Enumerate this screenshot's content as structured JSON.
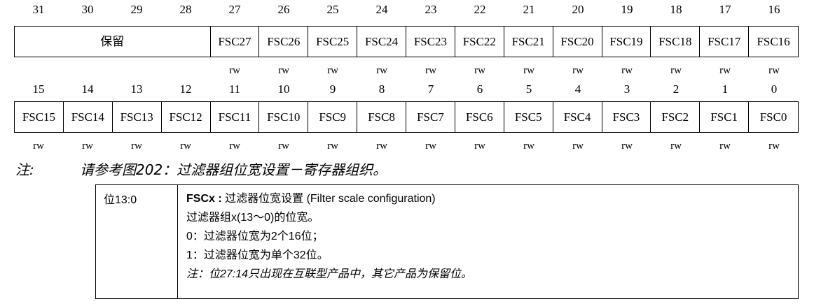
{
  "high_half": {
    "bits": [
      "31",
      "30",
      "29",
      "28",
      "27",
      "26",
      "25",
      "24",
      "23",
      "22",
      "21",
      "20",
      "19",
      "18",
      "17",
      "16"
    ],
    "reserved_label": "保留",
    "fields": [
      "FSC27",
      "FSC26",
      "FSC25",
      "FSC24",
      "FSC23",
      "FSC22",
      "FSC21",
      "FSC20",
      "FSC19",
      "FSC18",
      "FSC17",
      "FSC16"
    ],
    "access": [
      "rw",
      "rw",
      "rw",
      "rw",
      "rw",
      "rw",
      "rw",
      "rw",
      "rw",
      "rw",
      "rw",
      "rw"
    ]
  },
  "low_half": {
    "bits": [
      "15",
      "14",
      "13",
      "12",
      "11",
      "10",
      "9",
      "8",
      "7",
      "6",
      "5",
      "4",
      "3",
      "2",
      "1",
      "0"
    ],
    "fields": [
      "FSC15",
      "FSC14",
      "FSC13",
      "FSC12",
      "FSC11",
      "FSC10",
      "FSC9",
      "FSC8",
      "FSC7",
      "FSC6",
      "FSC5",
      "FSC4",
      "FSC3",
      "FSC2",
      "FSC1",
      "FSC0"
    ],
    "access": [
      "rw",
      "rw",
      "rw",
      "rw",
      "rw",
      "rw",
      "rw",
      "rw",
      "rw",
      "rw",
      "rw",
      "rw",
      "rw",
      "rw",
      "rw",
      "rw"
    ]
  },
  "note": {
    "label": "注:",
    "text": "请参考图202：过滤器组位宽设置－寄存器组织。"
  },
  "description": {
    "bits": "位13:0",
    "field_name": "FSCx :",
    "field_title": " 过滤器位宽设置 (Filter scale configuration)",
    "lines": [
      "过滤器组x(13～0)的位宽。",
      "0：过滤器位宽为2个16位；",
      "1：过滤器位宽为单个32位。"
    ],
    "footnote": "注：位27:14只出现在互联型产品中，其它产品为保留位。"
  }
}
